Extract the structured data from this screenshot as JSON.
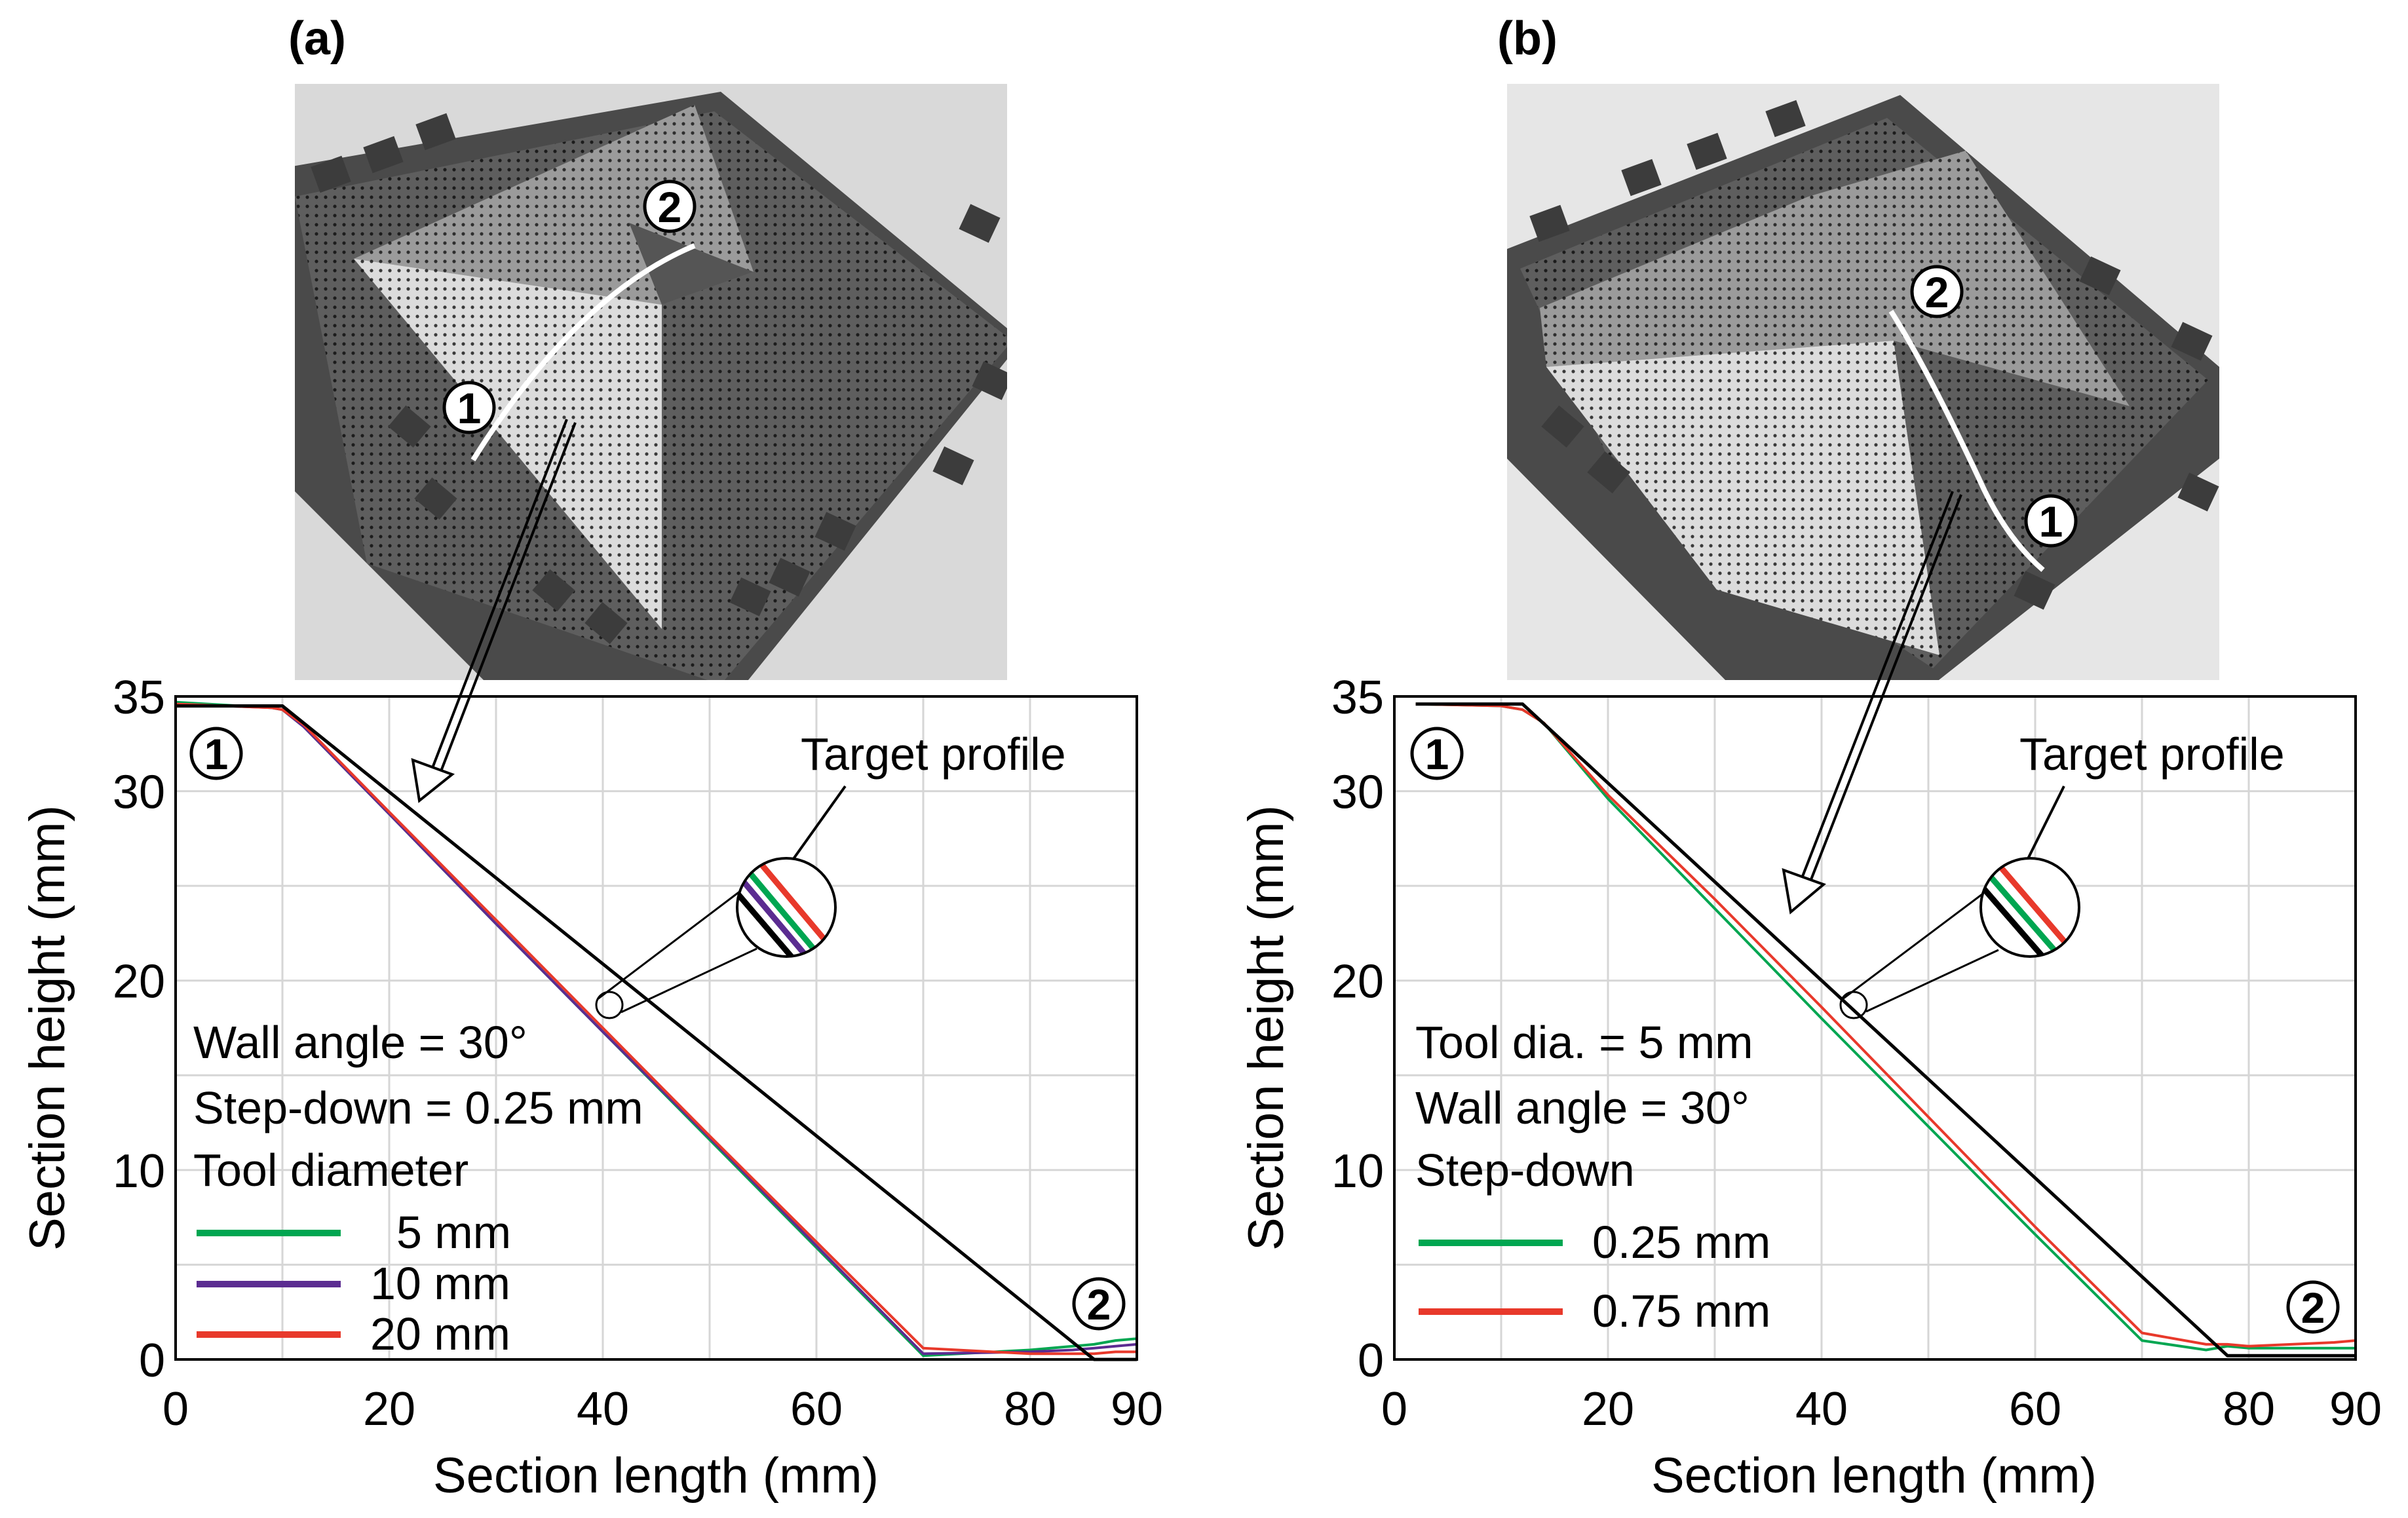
{
  "panels": [
    {
      "label": "(a)",
      "photo_markers": [
        "1",
        "2"
      ],
      "chart_data": {
        "type": "line",
        "title": "",
        "xlabel": "Section length (mm)",
        "ylabel": "Section height (mm)",
        "xlim": [
          0,
          90
        ],
        "ylim": [
          0,
          35
        ],
        "xticks": [
          0,
          20,
          40,
          60,
          80,
          90
        ],
        "yticks": [
          0,
          10,
          20,
          30,
          35
        ],
        "grid": true,
        "point_markers": [
          "1",
          "2"
        ],
        "annotation": "Target profile",
        "params": [
          "Wall angle = 30°",
          "Step-down = 0.25 mm"
        ],
        "legend_title": "Tool diameter",
        "legend_position": "bottom-left",
        "series": [
          {
            "name": "5 mm",
            "color": "#00a651",
            "x": [
              0,
              9,
              10,
              12,
              20,
              30,
              40,
              50,
              60,
              70,
              80,
              84,
              86,
              88,
              90
            ],
            "y": [
              34.7,
              34.4,
              34.3,
              33.4,
              28.8,
              23.0,
              17.3,
              11.6,
              5.9,
              0.2,
              0.5,
              0.7,
              0.8,
              1.0,
              1.1
            ]
          },
          {
            "name": "10 mm",
            "color": "#5b2c91",
            "x": [
              0,
              9,
              10,
              12,
              20,
              30,
              40,
              50,
              60,
              70,
              80,
              84,
              86,
              88,
              90
            ],
            "y": [
              34.6,
              34.4,
              34.3,
              33.4,
              28.8,
              23.0,
              17.3,
              11.7,
              6.0,
              0.3,
              0.4,
              0.5,
              0.6,
              0.7,
              0.8
            ]
          },
          {
            "name": "20 mm",
            "color": "#e8392b",
            "x": [
              0,
              9,
              10,
              12,
              20,
              30,
              40,
              50,
              60,
              70,
              80,
              84,
              86,
              88,
              90
            ],
            "y": [
              34.6,
              34.4,
              34.3,
              33.5,
              28.9,
              23.2,
              17.5,
              11.8,
              6.2,
              0.6,
              0.3,
              0.3,
              0.3,
              0.4,
              0.4
            ]
          },
          {
            "name": "Target profile",
            "color": "#000000",
            "x": [
              0,
              10,
              86,
              90
            ],
            "y": [
              34.5,
              34.5,
              0,
              0
            ]
          }
        ]
      }
    },
    {
      "label": "(b)",
      "photo_markers": [
        "2",
        "1"
      ],
      "chart_data": {
        "type": "line",
        "title": "",
        "xlabel": "Section length (mm)",
        "ylabel": "Section height (mm)",
        "xlim": [
          0,
          90
        ],
        "ylim": [
          0,
          35
        ],
        "xticks": [
          0,
          20,
          40,
          60,
          80,
          90
        ],
        "yticks": [
          0,
          10,
          20,
          30,
          35
        ],
        "grid": true,
        "point_markers": [
          "1",
          "2"
        ],
        "annotation": "Target profile",
        "params": [
          "Tool dia. = 5 mm",
          "Wall angle = 30°"
        ],
        "legend_title": "Step-down",
        "legend_position": "bottom-left",
        "series": [
          {
            "name": "0.25 mm",
            "color": "#00a651",
            "x": [
              2,
              10,
              12,
              14,
              20,
              30,
              40,
              50,
              60,
              70,
              76,
              78,
              80,
              84,
              88,
              90
            ],
            "y": [
              34.6,
              34.5,
              34.3,
              33.6,
              29.6,
              23.8,
              18.0,
              12.3,
              6.6,
              1.0,
              0.5,
              0.7,
              0.6,
              0.6,
              0.6,
              0.6
            ]
          },
          {
            "name": "0.75 mm",
            "color": "#e8392b",
            "x": [
              2,
              10,
              12,
              14,
              20,
              30,
              40,
              50,
              60,
              70,
              76,
              78,
              80,
              84,
              88,
              90
            ],
            "y": [
              34.6,
              34.5,
              34.3,
              33.6,
              29.8,
              24.3,
              18.6,
              12.8,
              7.0,
              1.4,
              0.8,
              0.8,
              0.7,
              0.8,
              0.9,
              1.0
            ]
          },
          {
            "name": "Target profile",
            "color": "#000000",
            "x": [
              2,
              12,
              78,
              90
            ],
            "y": [
              34.6,
              34.6,
              0.2,
              0.2
            ]
          }
        ]
      }
    }
  ]
}
